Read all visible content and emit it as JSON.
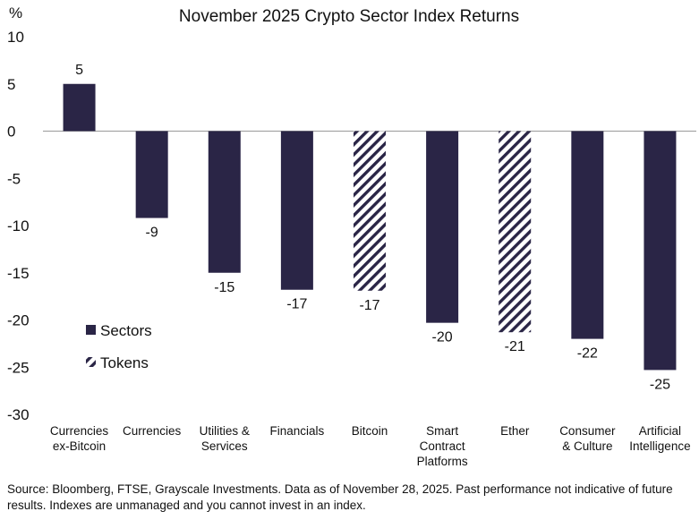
{
  "chart_data": {
    "type": "bar",
    "title": "November 2025 Crypto Sector Index Returns",
    "y_unit": "%",
    "ylim": [
      -30,
      10
    ],
    "yticks": [
      10,
      5,
      0,
      -5,
      -10,
      -15,
      -20,
      -25,
      -30
    ],
    "grid": false,
    "legend_position": "lower-left",
    "categories": [
      [
        "Currencies",
        "ex-Bitcoin"
      ],
      [
        "Currencies"
      ],
      [
        "Utilities &",
        "Services"
      ],
      [
        "Financials"
      ],
      [
        "Bitcoin"
      ],
      [
        "Smart",
        "Contract",
        "Platforms"
      ],
      [
        "Ether"
      ],
      [
        "Consumer",
        "& Culture"
      ],
      [
        "Artificial",
        "Intelligence"
      ]
    ],
    "values": [
      5,
      -9.2,
      -15,
      -16.8,
      -16.9,
      -20.3,
      -21.3,
      -22,
      -25.3
    ],
    "data_labels": [
      "5",
      "-9",
      "-15",
      "-17",
      "-17",
      "-20",
      "-21",
      "-22",
      "-25"
    ],
    "kinds": [
      "sector",
      "sector",
      "sector",
      "sector",
      "token",
      "sector",
      "token",
      "sector",
      "sector"
    ],
    "legend": [
      {
        "kind": "sector",
        "label": "Sectors"
      },
      {
        "kind": "token",
        "label": "Tokens"
      }
    ],
    "colors": {
      "sector": "#2a2546",
      "token": "#2a2546"
    }
  },
  "source_note": "Source: Bloomberg, FTSE, Grayscale Investments. Data as of November 28, 2025. Past performance not indicative of future results. Indexes are unmanaged and you cannot invest in an index."
}
